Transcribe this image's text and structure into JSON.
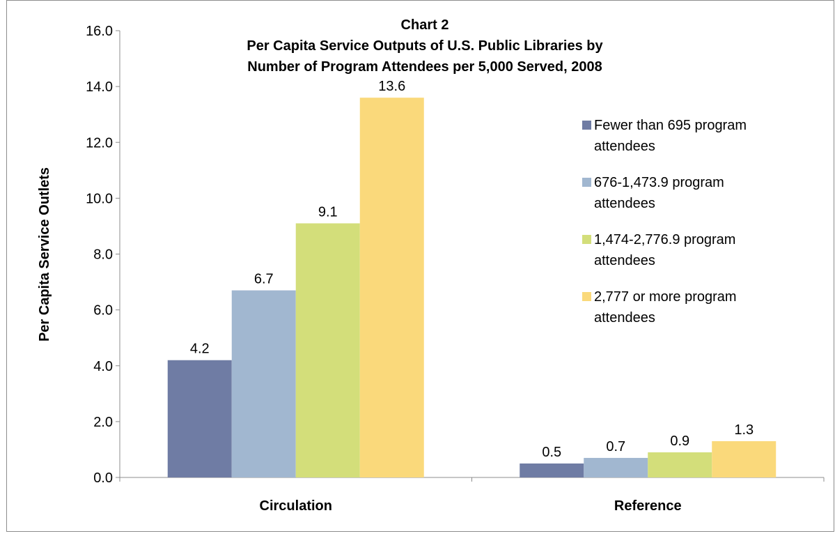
{
  "chart_data": {
    "type": "bar",
    "title": "Chart 2",
    "subtitle_lines": [
      "Per Capita Service Outputs of U.S. Public Libraries by",
      "Number of Program Attendees per 5,000 Served, 2008"
    ],
    "xlabel": "",
    "ylabel": "Per Capita Service Outlets",
    "ylim": [
      0,
      16
    ],
    "yticks": [
      "0.0",
      "2.0",
      "4.0",
      "6.0",
      "8.0",
      "10.0",
      "12.0",
      "14.0",
      "16.0"
    ],
    "categories": [
      "Circulation",
      "Reference"
    ],
    "series": [
      {
        "name": "Fewer than 695 program attendees",
        "legend_lines": [
          "Fewer than 695 program",
          "attendees"
        ],
        "color": "#6f7ca4",
        "values": [
          4.2,
          0.5
        ],
        "labels": [
          "4.2",
          "0.5"
        ]
      },
      {
        "name": "676-1,473.9 program attendees",
        "legend_lines": [
          "676-1,473.9 program",
          "attendees"
        ],
        "color": "#a1b7d0",
        "values": [
          6.7,
          0.7
        ],
        "labels": [
          "6.7",
          "0.7"
        ]
      },
      {
        "name": "1,474-2,776.9 program attendees",
        "legend_lines": [
          "1,474-2,776.9 program",
          "attendees"
        ],
        "color": "#d3de7a",
        "values": [
          9.1,
          0.9
        ],
        "labels": [
          "9.1",
          "0.9"
        ]
      },
      {
        "name": "2,777 or more program attendees",
        "legend_lines": [
          "2,777 or more program",
          "attendees"
        ],
        "color": "#fad97b",
        "values": [
          13.6,
          1.3
        ],
        "labels": [
          "13.6",
          "1.3"
        ]
      }
    ],
    "grid": false,
    "legend_position": "right"
  }
}
